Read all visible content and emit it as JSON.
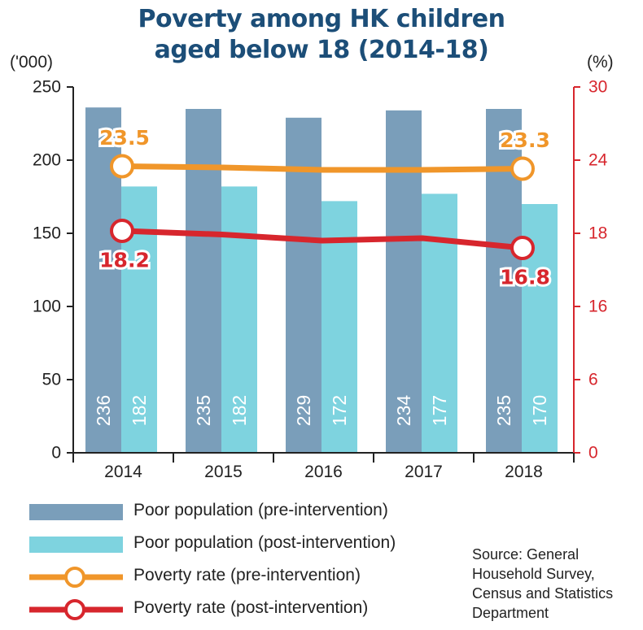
{
  "title_line1": "Poverty among HK children",
  "title_line2": "aged below 18 (2014-18)",
  "colors": {
    "title": "#1c4e78",
    "pre_bar": "#7a9eba",
    "post_bar": "#7ed3df",
    "pre_rate": "#f0962a",
    "post_rate": "#d7262d"
  },
  "chart_data": {
    "type": "bar",
    "categories": [
      "2014",
      "2015",
      "2016",
      "2017",
      "2018"
    ],
    "left_axis": {
      "unit_label": "('000)",
      "range": [
        0,
        250
      ],
      "ticks": [
        "0",
        "50",
        "100",
        "150",
        "200",
        "250"
      ]
    },
    "right_axis": {
      "unit_label": "(%)",
      "range": [
        0,
        30
      ],
      "ticks": [
        "0",
        "6",
        "16",
        "18",
        "24",
        "30"
      ]
    },
    "bar_series": [
      {
        "name": "Poor population (pre-intervention)",
        "values": [
          236,
          235,
          229,
          234,
          235
        ],
        "labels": [
          "236",
          "235",
          "229",
          "234",
          "235"
        ]
      },
      {
        "name": "Poor population (post-intervention)",
        "values": [
          182,
          182,
          172,
          177,
          170
        ],
        "labels": [
          "182",
          "182",
          "172",
          "177",
          "170"
        ]
      }
    ],
    "line_series": [
      {
        "name": "Poverty rate (pre-intervention)",
        "values": [
          23.5,
          23.4,
          23.2,
          23.2,
          23.3
        ],
        "label_values": [
          "23.5",
          "23.3"
        ]
      },
      {
        "name": "Poverty rate (post-intervention)",
        "values": [
          18.2,
          17.9,
          17.4,
          17.6,
          16.8
        ],
        "label_values": [
          "18.2",
          "16.8"
        ]
      }
    ],
    "legend_position": "bottom-left",
    "grid": false
  },
  "legend": [
    {
      "label": "Poor population (pre-intervention)"
    },
    {
      "label": "Poor population (post-intervention)"
    },
    {
      "label": "Poverty rate (pre-intervention)"
    },
    {
      "label": "Poverty rate (post-intervention)"
    }
  ],
  "source": "Source: General Household Survey, Census and Statistics Department"
}
